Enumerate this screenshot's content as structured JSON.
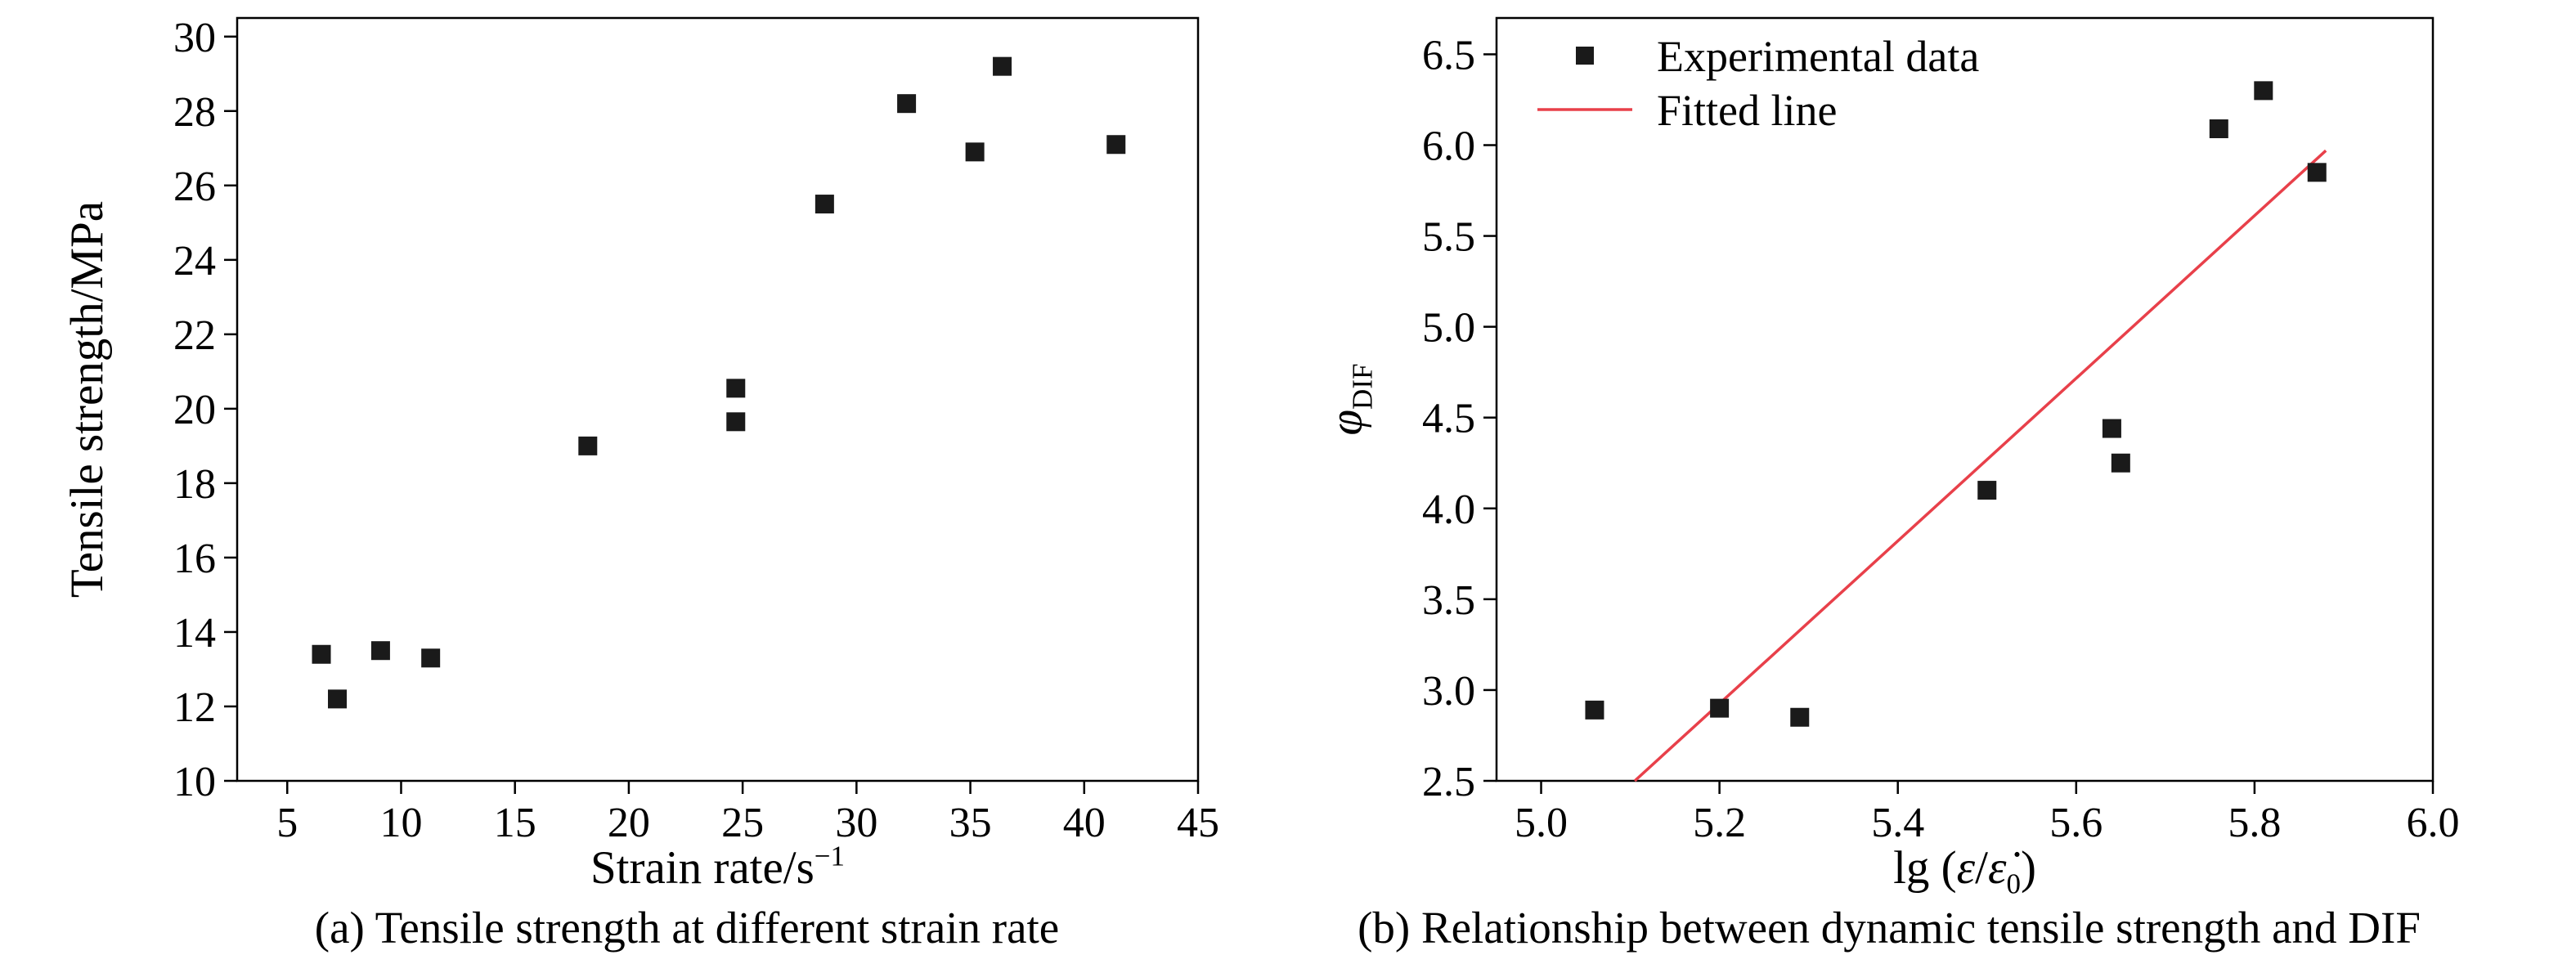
{
  "figure": {
    "caption_a": "(a) Tensile strength at different strain rate",
    "caption_b": "(b) Relationship between dynamic tensile strength and DIF"
  },
  "colors": {
    "axis": "#000000",
    "marker": "#1a1a1a",
    "fit_line": "#e8404a",
    "background": "#ffffff"
  },
  "chart_data": [
    {
      "type": "scatter",
      "title": "",
      "xlabel_parts": [
        {
          "t": "Strain rate/s"
        },
        {
          "t": "−1",
          "sup": true
        }
      ],
      "ylabel_parts": [
        {
          "t": "Tensile strength/MPa"
        }
      ],
      "xlim": [
        2.8,
        45
      ],
      "ylim": [
        10,
        30.5
      ],
      "xtick_vals": [
        5,
        10,
        15,
        20,
        25,
        30,
        35,
        40,
        45
      ],
      "xtick_labels": [
        "5",
        "10",
        "15",
        "20",
        "25",
        "30",
        "35",
        "40",
        "45"
      ],
      "ytick_vals": [
        10,
        12,
        14,
        16,
        18,
        20,
        22,
        24,
        26,
        28,
        30
      ],
      "ytick_labels": [
        "10",
        "12",
        "14",
        "16",
        "18",
        "20",
        "22",
        "24",
        "26",
        "28",
        "30"
      ],
      "grid": false,
      "marker": "square",
      "marker_color": "#1a1a1a",
      "points": [
        [
          6.5,
          13.4
        ],
        [
          7.2,
          12.2
        ],
        [
          9.1,
          13.5
        ],
        [
          11.3,
          13.3
        ],
        [
          18.2,
          19.0
        ],
        [
          24.7,
          20.55
        ],
        [
          24.7,
          19.65
        ],
        [
          28.6,
          25.5
        ],
        [
          32.2,
          28.2
        ],
        [
          35.2,
          26.9
        ],
        [
          36.4,
          29.2
        ],
        [
          41.4,
          27.1
        ]
      ]
    },
    {
      "type": "scatter",
      "title": "",
      "xlabel_parts": [
        {
          "t": "lg ("
        },
        {
          "t": "ε",
          "style": "italic"
        },
        {
          "t": "/"
        },
        {
          "t": "ε̇",
          "style": "italic"
        },
        {
          "t": "0",
          "sub": true
        },
        {
          "t": ")"
        }
      ],
      "ylabel_parts": [
        {
          "t": "φ",
          "style": "italic"
        },
        {
          "t": "DIF",
          "sub": true
        }
      ],
      "xlim": [
        4.95,
        6.0
      ],
      "ylim": [
        2.5,
        6.7
      ],
      "xtick_vals": [
        5.0,
        5.2,
        5.4,
        5.6,
        5.8,
        6.0
      ],
      "xtick_labels": [
        "5.0",
        "5.2",
        "5.4",
        "5.6",
        "5.8",
        "6.0"
      ],
      "ytick_vals": [
        2.5,
        3.0,
        3.5,
        4.0,
        4.5,
        5.0,
        5.5,
        6.0,
        6.5
      ],
      "ytick_labels": [
        "2.5",
        "3.0",
        "3.5",
        "4.0",
        "4.5",
        "5.0",
        "5.5",
        "6.0",
        "6.5"
      ],
      "grid": false,
      "marker": "square",
      "marker_color": "#1a1a1a",
      "points": [
        [
          5.06,
          2.89
        ],
        [
          5.2,
          2.9
        ],
        [
          5.29,
          2.85
        ],
        [
          5.5,
          4.1
        ],
        [
          5.64,
          4.44
        ],
        [
          5.65,
          4.25
        ],
        [
          5.76,
          6.09
        ],
        [
          5.81,
          6.3
        ],
        [
          5.87,
          5.85
        ]
      ],
      "fit_line": {
        "x1": 5.105,
        "y1": 2.5,
        "x2": 5.88,
        "y2": 5.97,
        "color": "#e8404a"
      },
      "legend": {
        "position": "top-left",
        "entries": [
          {
            "label": "Experimental data",
            "marker": "square",
            "color": "#1a1a1a"
          },
          {
            "label": "Fitted line",
            "marker": "line",
            "color": "#e8404a"
          }
        ]
      }
    }
  ]
}
